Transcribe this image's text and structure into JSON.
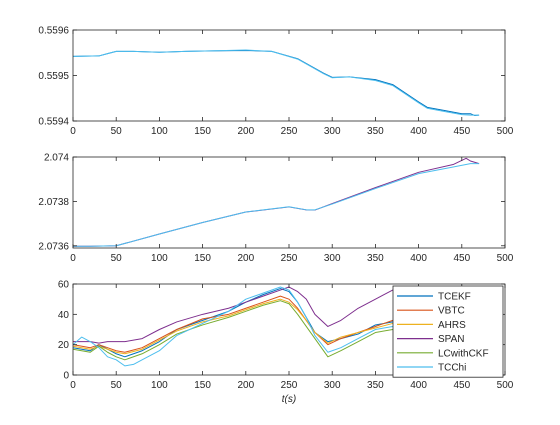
{
  "chart_data": [
    {
      "type": "line",
      "title": "",
      "xlabel": "",
      "ylabel": "",
      "xlim": [
        0,
        500
      ],
      "ylim": [
        0.5594,
        0.5596
      ],
      "xticks": [
        "0",
        "50",
        "100",
        "150",
        "200",
        "250",
        "300",
        "350",
        "400",
        "450",
        "500"
      ],
      "yticks": [
        "0.5594",
        "0.5595",
        "0.5596"
      ],
      "grid": false,
      "series": [
        {
          "color": "#0072BD",
          "x": [
            0,
            30,
            40,
            50,
            70,
            100,
            130,
            160,
            200,
            230,
            260,
            290,
            300,
            320,
            350,
            370,
            400,
            410,
            430,
            450,
            460,
            465,
            470
          ],
          "y": [
            0.559542,
            0.559543,
            0.559548,
            0.559553,
            0.559553,
            0.559551,
            0.559553,
            0.559554,
            0.559555,
            0.559553,
            0.559537,
            0.559505,
            0.559496,
            0.559497,
            0.559491,
            0.55948,
            0.559442,
            0.55943,
            0.559423,
            0.559416,
            0.559416,
            0.559412,
            0.559413
          ]
        },
        {
          "color": "#4DBEEE",
          "x": [
            0,
            30,
            40,
            50,
            70,
            100,
            130,
            160,
            200,
            230,
            260,
            290,
            300,
            320,
            350,
            370,
            400,
            410,
            430,
            450,
            460,
            470
          ],
          "y": [
            0.559542,
            0.559543,
            0.559548,
            0.559553,
            0.559553,
            0.559551,
            0.559553,
            0.559554,
            0.559556,
            0.559553,
            0.559536,
            0.559504,
            0.559495,
            0.559497,
            0.559489,
            0.559478,
            0.55944,
            0.559428,
            0.559421,
            0.559414,
            0.559413,
            0.559413
          ]
        }
      ]
    },
    {
      "type": "line",
      "title": "",
      "xlabel": "",
      "ylabel": "",
      "xlim": [
        0,
        500
      ],
      "ylim": [
        2.07359,
        2.074
      ],
      "xticks": [
        "0",
        "50",
        "100",
        "150",
        "200",
        "250",
        "300",
        "350",
        "400",
        "450",
        "500"
      ],
      "yticks": [
        "2.0736",
        "2.0738",
        "2.074"
      ],
      "grid": false,
      "series": [
        {
          "color": "#7E2F8E",
          "x": [
            0,
            20,
            50,
            100,
            150,
            200,
            250,
            270,
            280,
            300,
            350,
            400,
            440,
            455,
            460,
            470
          ],
          "y": [
            2.073598,
            2.073598,
            2.0736,
            2.073653,
            2.073705,
            2.073752,
            2.073775,
            2.073762,
            2.073761,
            2.07379,
            2.073862,
            2.073931,
            2.073966,
            2.073994,
            2.073982,
            2.07397
          ]
        },
        {
          "color": "#4DBEEE",
          "x": [
            0,
            20,
            50,
            100,
            150,
            200,
            250,
            270,
            280,
            300,
            350,
            400,
            440,
            460,
            470
          ],
          "y": [
            2.073598,
            2.073598,
            2.0736,
            2.073653,
            2.073705,
            2.073752,
            2.073776,
            2.073762,
            2.073762,
            2.073788,
            2.073858,
            2.073925,
            2.073955,
            2.07397,
            2.07397
          ]
        }
      ]
    },
    {
      "type": "line",
      "title": "",
      "xlabel": "t(s)",
      "ylabel": "",
      "xlim": [
        0,
        500
      ],
      "ylim": [
        0,
        60
      ],
      "xticks": [
        "0",
        "50",
        "100",
        "150",
        "200",
        "250",
        "300",
        "350",
        "400",
        "450",
        "500"
      ],
      "yticks": [
        "0",
        "20",
        "40",
        "60"
      ],
      "grid": false,
      "legend_position": "bottom-right",
      "series": [
        {
          "name": "TCEKF",
          "color": "#0072BD",
          "x": [
            0,
            20,
            30,
            40,
            50,
            60,
            80,
            100,
            120,
            150,
            180,
            200,
            220,
            240,
            250,
            260,
            270,
            280,
            295,
            310,
            330,
            350,
            370,
            380,
            400,
            420,
            440,
            460,
            470
          ],
          "y": [
            18,
            16,
            20,
            17,
            14,
            12,
            16,
            22,
            30,
            36,
            42,
            48,
            53,
            57,
            55,
            48,
            38,
            28,
            22,
            24,
            27,
            33,
            35,
            28,
            22,
            24,
            26,
            24,
            24
          ]
        },
        {
          "name": "VBTC",
          "color": "#D95319",
          "x": [
            0,
            20,
            30,
            40,
            50,
            60,
            80,
            100,
            120,
            150,
            180,
            200,
            220,
            240,
            250,
            260,
            270,
            280,
            295,
            310,
            330,
            350,
            370,
            380,
            400,
            420,
            440,
            460,
            470
          ],
          "y": [
            20,
            18,
            20,
            18,
            16,
            15,
            18,
            24,
            30,
            37,
            40,
            44,
            48,
            52,
            50,
            44,
            36,
            28,
            20,
            24,
            28,
            32,
            36,
            32,
            26,
            26,
            28,
            26,
            26
          ]
        },
        {
          "name": "AHRS",
          "color": "#EDB120",
          "x": [
            0,
            20,
            30,
            40,
            50,
            60,
            80,
            100,
            120,
            150,
            180,
            200,
            220,
            240,
            250,
            260,
            270,
            280,
            295,
            310,
            330,
            350,
            370,
            380,
            400,
            420,
            440,
            460,
            470
          ],
          "y": [
            19,
            17,
            19,
            17,
            15,
            14,
            17,
            23,
            29,
            35,
            39,
            43,
            47,
            50,
            48,
            43,
            36,
            28,
            21,
            25,
            28,
            31,
            34,
            31,
            25,
            25,
            27,
            25,
            25
          ]
        },
        {
          "name": "SPAN",
          "color": "#7E2F8E",
          "x": [
            0,
            20,
            30,
            40,
            50,
            60,
            80,
            100,
            120,
            150,
            180,
            200,
            220,
            240,
            250,
            260,
            270,
            280,
            295,
            310,
            330,
            350,
            370,
            380,
            400,
            420,
            440,
            460,
            470
          ],
          "y": [
            22,
            22,
            21,
            22,
            22,
            22,
            24,
            30,
            35,
            40,
            44,
            48,
            52,
            56,
            58,
            55,
            50,
            40,
            32,
            36,
            44,
            50,
            56,
            55,
            52,
            52,
            54,
            55,
            56
          ]
        },
        {
          "name": "LCwithCKF",
          "color": "#77AC30",
          "x": [
            0,
            20,
            30,
            40,
            50,
            60,
            80,
            100,
            120,
            150,
            180,
            200,
            220,
            240,
            250,
            260,
            270,
            280,
            295,
            310,
            330,
            350,
            370,
            380,
            400,
            420,
            440,
            460,
            470
          ],
          "y": [
            17,
            15,
            19,
            15,
            12,
            10,
            14,
            20,
            27,
            33,
            38,
            42,
            46,
            49,
            47,
            40,
            32,
            24,
            12,
            16,
            22,
            28,
            30,
            26,
            19,
            21,
            23,
            21,
            21
          ]
        },
        {
          "name": "TCChi",
          "color": "#4DBEEE",
          "x": [
            0,
            10,
            20,
            30,
            40,
            50,
            60,
            70,
            80,
            100,
            120,
            150,
            180,
            200,
            220,
            240,
            250,
            260,
            270,
            280,
            295,
            310,
            330,
            350,
            370,
            380,
            400,
            420,
            440,
            460,
            470
          ],
          "y": [
            20,
            25,
            22,
            18,
            12,
            10,
            6,
            7,
            10,
            16,
            26,
            34,
            42,
            50,
            54,
            58,
            56,
            48,
            38,
            26,
            15,
            18,
            24,
            30,
            32,
            30,
            24,
            26,
            30,
            26,
            24
          ]
        }
      ]
    }
  ]
}
